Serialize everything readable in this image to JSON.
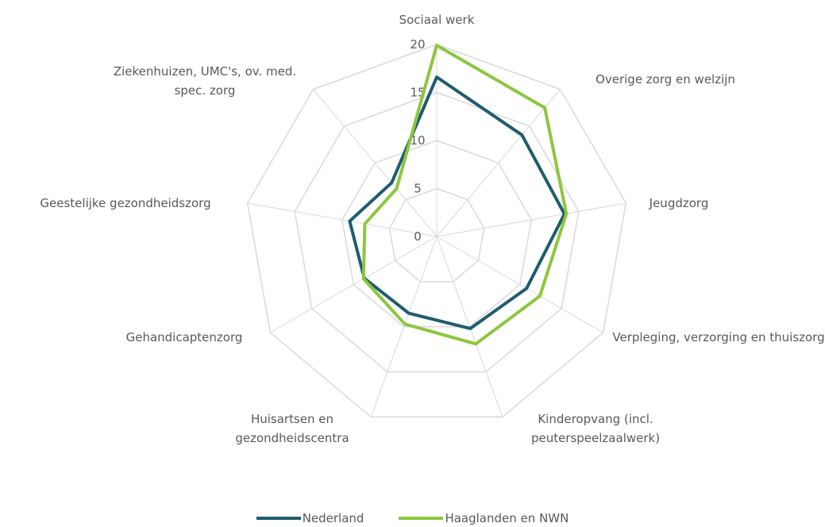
{
  "chart_data": {
    "type": "radar",
    "categories": [
      "Sociaal werk",
      "Overige zorg en welzijn",
      "Jeugdzorg",
      "Verpleging, verzorging en thuiszorg",
      "Kinderopvang (incl. peuterspeelzaalwerk)",
      "Huisartsen en gezondheidscentra",
      "Gehandicaptenzorg",
      "Geestelijke gezondheidszorg",
      "Ziekenhuizen, UMC's, ov. med. spec. zorg"
    ],
    "series": [
      {
        "name": "Nederland",
        "color": "#1f5c6e",
        "values": [
          16.6,
          13.8,
          13.5,
          10.8,
          10.2,
          8.5,
          8.7,
          9.2,
          7.3
        ]
      },
      {
        "name": "Haaglanden en NWN",
        "color": "#8dc63f",
        "values": [
          19.9,
          17.5,
          13.7,
          12.4,
          11.9,
          9.7,
          8.8,
          7.6,
          6.5
        ]
      }
    ],
    "ylim": [
      0,
      20
    ],
    "yticks": [
      0,
      5,
      10,
      15,
      20
    ],
    "grid": true
  }
}
